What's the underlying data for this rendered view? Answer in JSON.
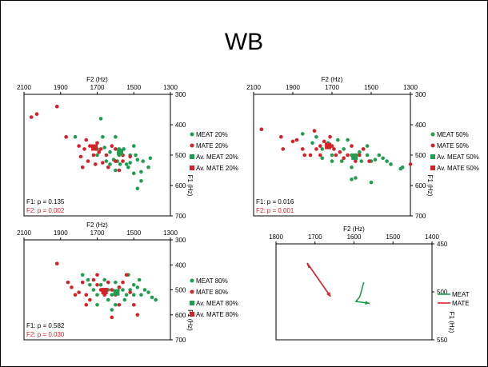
{
  "slide": {
    "title": "WB"
  },
  "colors": {
    "meat": "#1f9e50",
    "mate": "#d8202a"
  },
  "chart_data": [
    {
      "type": "scatter",
      "panel": "meat-mate-20",
      "xlabel": "F2 (Hz)",
      "ylabel": "F1 (Hz)",
      "xlim": [
        2100,
        1300
      ],
      "ylim": [
        700,
        300
      ],
      "xticks": [
        2100,
        1900,
        1700,
        1500,
        1300
      ],
      "yticks": [
        300,
        400,
        500,
        600,
        700
      ],
      "stats": [
        "F1: p = 0.135",
        "F2: p = 0.002"
      ],
      "series": [
        {
          "name": "MEAT 20%",
          "points": [
            [
              1555,
              480
            ],
            [
              1610,
              515
            ],
            [
              1630,
              490
            ],
            [
              1500,
              470
            ],
            [
              1580,
              500
            ],
            [
              1520,
              500
            ],
            [
              1480,
              515
            ],
            [
              1450,
              520
            ],
            [
              1530,
              540
            ],
            [
              1500,
              560
            ],
            [
              1580,
              480
            ],
            [
              1630,
              530
            ],
            [
              1540,
              530
            ],
            [
              1670,
              440
            ],
            [
              1590,
              520
            ],
            [
              1700,
              500
            ],
            [
              1700,
              480
            ],
            [
              1650,
              520
            ],
            [
              1600,
              550
            ],
            [
              1460,
              585
            ],
            [
              1420,
              540
            ],
            [
              1410,
              510
            ],
            [
              1490,
              500
            ],
            [
              1460,
              555
            ],
            [
              1575,
              530
            ],
            [
              1520,
              525
            ],
            [
              1680,
              380
            ],
            [
              1600,
              440
            ],
            [
              1660,
              475
            ],
            [
              1820,
              440
            ],
            [
              1480,
              610
            ]
          ]
        },
        {
          "name": "MATE 20%",
          "points": [
            [
              2060,
              375
            ],
            [
              2030,
              365
            ],
            [
              1920,
              340
            ],
            [
              1870,
              440
            ],
            [
              1800,
              470
            ],
            [
              1790,
              505
            ],
            [
              1710,
              530
            ],
            [
              1720,
              500
            ],
            [
              1740,
              470
            ],
            [
              1750,
              520
            ],
            [
              1770,
              480
            ],
            [
              1680,
              480
            ],
            [
              1650,
              500
            ],
            [
              1600,
              520
            ],
            [
              1620,
              470
            ],
            [
              1670,
              525
            ],
            [
              1640,
              540
            ],
            [
              1700,
              460
            ],
            [
              1560,
              520
            ],
            [
              1560,
              500
            ],
            [
              1520,
              505
            ],
            [
              1580,
              550
            ],
            [
              1600,
              480
            ],
            [
              1760,
              450
            ],
            [
              1690,
              490
            ],
            [
              1780,
              540
            ]
          ]
        },
        {
          "name": "Av. MEAT 20%",
          "points": [
            [
              1575,
              490
            ]
          ]
        },
        {
          "name": "Av. MATE 20%",
          "points": [
            [
              1715,
              475
            ]
          ]
        }
      ]
    },
    {
      "type": "scatter",
      "panel": "meat-mate-50",
      "xlabel": "F2 (Hz)",
      "ylabel": "F1 (Hz)",
      "xlim": [
        2100,
        1300
      ],
      "ylim": [
        700,
        300
      ],
      "xticks": [
        2100,
        1900,
        1700,
        1500,
        1300
      ],
      "yticks": [
        300,
        400,
        500,
        600,
        700
      ],
      "stats": [
        "F1: p = 0.016",
        "F2: p = 0.001"
      ],
      "series": [
        {
          "name": "MEAT 50%",
          "points": [
            [
              1850,
              430
            ],
            [
              1800,
              460
            ],
            [
              1780,
              440
            ],
            [
              1750,
              480
            ],
            [
              1720,
              460
            ],
            [
              1700,
              500
            ],
            [
              1640,
              480
            ],
            [
              1600,
              500
            ],
            [
              1580,
              510
            ],
            [
              1560,
              490
            ],
            [
              1540,
              480
            ],
            [
              1520,
              500
            ],
            [
              1500,
              520
            ],
            [
              1480,
              515
            ],
            [
              1460,
              500
            ],
            [
              1440,
              510
            ],
            [
              1420,
              520
            ],
            [
              1400,
              530
            ],
            [
              1350,
              545
            ],
            [
              1340,
              540
            ],
            [
              1600,
              580
            ],
            [
              1580,
              575
            ],
            [
              1500,
              590
            ],
            [
              1550,
              520
            ],
            [
              1650,
              520
            ],
            [
              1620,
              450
            ],
            [
              1700,
              520
            ],
            [
              1750,
              510
            ],
            [
              1670,
              450
            ],
            [
              1520,
              470
            ],
            [
              1600,
              540
            ]
          ]
        },
        {
          "name": "MATE 50%",
          "points": [
            [
              2060,
              415
            ],
            [
              1960,
              440
            ],
            [
              1950,
              480
            ],
            [
              1900,
              455
            ],
            [
              1880,
              450
            ],
            [
              1840,
              500
            ],
            [
              1810,
              500
            ],
            [
              1780,
              480
            ],
            [
              1760,
              470
            ],
            [
              1740,
              455
            ],
            [
              1720,
              470
            ],
            [
              1700,
              470
            ],
            [
              1690,
              480
            ],
            [
              1680,
              500
            ],
            [
              1660,
              490
            ],
            [
              1640,
              510
            ],
            [
              1620,
              500
            ],
            [
              1600,
              470
            ],
            [
              1580,
              520
            ],
            [
              1560,
              500
            ],
            [
              1540,
              480
            ],
            [
              1510,
              520
            ],
            [
              1300,
              530
            ],
            [
              1790,
              420
            ],
            [
              1710,
              440
            ],
            [
              1760,
              500
            ],
            [
              1850,
              480
            ]
          ]
        },
        {
          "name": "Av. MEAT 50%",
          "points": [
            [
              1585,
              505
            ]
          ]
        },
        {
          "name": "Av. MATE 50%",
          "points": [
            [
              1720,
              470
            ]
          ]
        }
      ]
    },
    {
      "type": "scatter",
      "panel": "meat-mate-80",
      "xlabel": "F2 (Hz)",
      "ylabel": "F1 (Hz)",
      "xlim": [
        2100,
        1300
      ],
      "ylim": [
        700,
        300
      ],
      "xticks": [
        2100,
        1900,
        1700,
        1500,
        1300
      ],
      "yticks": [
        300,
        400,
        500,
        600,
        700
      ],
      "stats": [
        "F1: p = 0.582",
        "F2: p = 0.030"
      ],
      "series": [
        {
          "name": "MEAT 80%",
          "points": [
            [
              1780,
              440
            ],
            [
              1750,
              460
            ],
            [
              1740,
              480
            ],
            [
              1720,
              500
            ],
            [
              1700,
              520
            ],
            [
              1680,
              480
            ],
            [
              1660,
              460
            ],
            [
              1640,
              500
            ],
            [
              1620,
              520
            ],
            [
              1600,
              470
            ],
            [
              1580,
              490
            ],
            [
              1560,
              500
            ],
            [
              1540,
              520
            ],
            [
              1520,
              500
            ],
            [
              1500,
              480
            ],
            [
              1480,
              490
            ],
            [
              1460,
              520
            ],
            [
              1440,
              500
            ],
            [
              1420,
              510
            ],
            [
              1400,
              530
            ],
            [
              1380,
              540
            ],
            [
              1600,
              560
            ],
            [
              1550,
              540
            ],
            [
              1500,
              520
            ],
            [
              1470,
              460
            ],
            [
              1530,
              440
            ],
            [
              1640,
              540
            ],
            [
              1700,
              560
            ],
            [
              1620,
              580
            ]
          ]
        },
        {
          "name": "MATE 80%",
          "points": [
            [
              1920,
              395
            ],
            [
              1860,
              470
            ],
            [
              1840,
              490
            ],
            [
              1800,
              510
            ],
            [
              1780,
              470
            ],
            [
              1760,
              520
            ],
            [
              1740,
              540
            ],
            [
              1720,
              460
            ],
            [
              1700,
              480
            ],
            [
              1680,
              500
            ],
            [
              1660,
              520
            ],
            [
              1640,
              470
            ],
            [
              1620,
              500
            ],
            [
              1600,
              520
            ],
            [
              1580,
              490
            ],
            [
              1560,
              470
            ],
            [
              1520,
              510
            ],
            [
              1540,
              440
            ],
            [
              1500,
              560
            ],
            [
              1480,
              600
            ],
            [
              1620,
              610
            ],
            [
              1760,
              560
            ],
            [
              1580,
              560
            ],
            [
              1700,
              440
            ],
            [
              1820,
              520
            ]
          ]
        },
        {
          "name": "Av. MEAT 80%",
          "points": [
            [
              1595,
              510
            ]
          ]
        },
        {
          "name": "Av. MATE 80%",
          "points": [
            [
              1660,
              505
            ]
          ]
        }
      ]
    },
    {
      "type": "line",
      "panel": "meat-mate-trajectories",
      "xlabel": "F2 (Hz)",
      "ylabel": "F1 (Hz)",
      "xlim": [
        1800,
        1400
      ],
      "ylim": [
        550,
        450
      ],
      "xticks": [
        1800,
        1700,
        1600,
        1500,
        1400
      ],
      "yticks": [
        450,
        500,
        550
      ],
      "series": [
        {
          "name": "MEAT",
          "points": [
            [
              1575,
              490
            ],
            [
              1585,
              505
            ],
            [
              1595,
              510
            ],
            [
              1560,
              512
            ]
          ]
        },
        {
          "name": "MATE",
          "points": [
            [
              1715,
              475
            ],
            [
              1720,
              470
            ],
            [
              1660,
              505
            ]
          ]
        }
      ]
    }
  ]
}
